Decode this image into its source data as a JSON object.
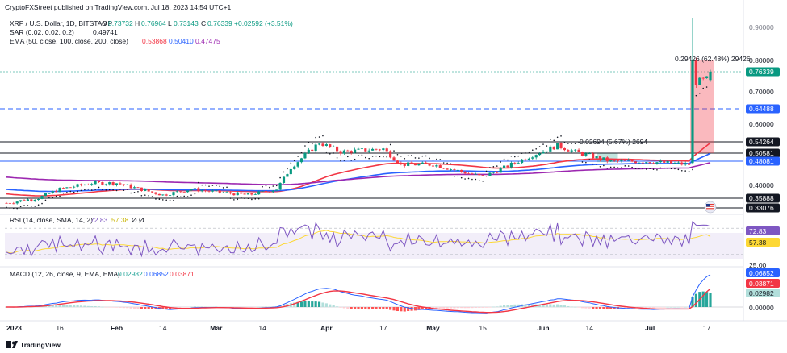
{
  "header": {
    "published_by": "CryptoFXStreet published on TradingView.com, Jul 18, 2023 14:54 UTC+1",
    "symbol_line": "XRP / U.S. Dollar, 1D, BITSTAMP",
    "ohlc": [
      {
        "key": "O",
        "value": "0.73732"
      },
      {
        "key": "H",
        "value": "0.76964"
      },
      {
        "key": "L",
        "value": "0.73143"
      },
      {
        "key": "C",
        "value": "0.76339"
      }
    ],
    "change": "+0.02592 (+3.51%)",
    "sar_line": {
      "label": "SAR (0.02, 0.02, 0.2)",
      "value": "0.49741"
    },
    "ema_line": {
      "label": "EMA (50, close, 100, close, 200, close)",
      "values": [
        "0.53868",
        "0.50410",
        "0.47475"
      ]
    }
  },
  "rsi": {
    "label": "RSI (14, close, SMA, 14, 2)",
    "values": [
      "72.83",
      "57.38",
      "Ø",
      "Ø"
    ],
    "axis_labels": {
      "upper": "72.83",
      "lower": "57.38",
      "bottom": "25.00"
    },
    "band": [
      30,
      70
    ]
  },
  "macd": {
    "label": "MACD (12, 26, close, 9, EMA, EMA)",
    "values": [
      "0.02982",
      "0.06852",
      "0.03871"
    ],
    "axis_labels": {
      "macd": "0.06852",
      "signal": "0.03871",
      "hist": "0.02982",
      "zero": "0.00000"
    }
  },
  "price_axis": {
    "ticks": [
      "0.80000",
      "0.70000",
      "0.60000",
      "0.40000"
    ],
    "clipped_top": "0.90000"
  },
  "levels": [
    {
      "label": "0.76339",
      "color": "#089981"
    },
    {
      "label": "0.64488",
      "color": "#2962ff"
    },
    {
      "label": "0.54264",
      "color": "#131722"
    },
    {
      "label": "0.50581",
      "color": "#131722"
    },
    {
      "label": "0.48081",
      "color": "#2962ff"
    },
    {
      "label": "0.35888",
      "color": "#131722"
    },
    {
      "label": "0.33076",
      "color": "#131722"
    }
  ],
  "annotations": {
    "measure_big": "0.29426 (62.48%) 29426",
    "measure_small": "0.02694 (5.67%) 2694"
  },
  "x_axis": [
    "2023",
    "16",
    "Feb",
    "14",
    "Mar",
    "14",
    "Apr",
    "17",
    "May",
    "15",
    "Jun",
    "14",
    "Jul",
    "17"
  ],
  "footer": {
    "brand": "TradingView"
  },
  "colors": {
    "up": "#089981",
    "down": "#f23645",
    "ema50": "#f23645",
    "ema100": "#2962ff",
    "ema200": "#9c27b0",
    "sar": "#131722",
    "rsi": "#7e57c2",
    "rsi_sma": "#fdd835",
    "macd": "#2962ff",
    "signal": "#f23645"
  },
  "chart_data": {
    "type": "candlestick",
    "title": "XRP / U.S. Dollar, 1D, BITSTAMP",
    "x_range": [
      "2023-01-01",
      "2023-07-18"
    ],
    "ylim": [
      0.31,
      0.92
    ],
    "price_path": [
      [
        "2023-01-01",
        0.345
      ],
      [
        "2023-01-10",
        0.36
      ],
      [
        "2023-01-16",
        0.39
      ],
      [
        "2023-01-25",
        0.41
      ],
      [
        "2023-02-01",
        0.41
      ],
      [
        "2023-02-14",
        0.37
      ],
      [
        "2023-02-22",
        0.39
      ],
      [
        "2023-03-01",
        0.38
      ],
      [
        "2023-03-10",
        0.37
      ],
      [
        "2023-03-18",
        0.39
      ],
      [
        "2023-03-22",
        0.46
      ],
      [
        "2023-03-28",
        0.52
      ],
      [
        "2023-03-30",
        0.54
      ],
      [
        "2023-04-05",
        0.51
      ],
      [
        "2023-04-17",
        0.52
      ],
      [
        "2023-04-22",
        0.47
      ],
      [
        "2023-05-01",
        0.47
      ],
      [
        "2023-05-15",
        0.43
      ],
      [
        "2023-05-29",
        0.5
      ],
      [
        "2023-06-05",
        0.53
      ],
      [
        "2023-06-10",
        0.51
      ],
      [
        "2023-06-20",
        0.48
      ],
      [
        "2023-06-30",
        0.48
      ],
      [
        "2023-07-12",
        0.47
      ],
      [
        "2023-07-13",
        0.8
      ],
      [
        "2023-07-14",
        0.73
      ],
      [
        "2023-07-17",
        0.74
      ],
      [
        "2023-07-18",
        0.76339
      ]
    ],
    "last_ohlc": {
      "open": 0.73732,
      "high": 0.76964,
      "low": 0.73143,
      "close": 0.76339
    },
    "series": [
      {
        "name": "EMA 50",
        "last": 0.53868
      },
      {
        "name": "EMA 100",
        "last": 0.5041
      },
      {
        "name": "EMA 200",
        "last": 0.47475
      },
      {
        "name": "SAR",
        "last": 0.49741
      }
    ],
    "horizontal_levels": [
      0.76339,
      0.64488,
      0.54264,
      0.50581,
      0.48081,
      0.35888,
      0.33076
    ],
    "rsi_last": 72.83,
    "rsi_sma_last": 57.38,
    "macd_last": {
      "macd": 0.06852,
      "signal": 0.03871,
      "histogram": 0.02982
    }
  }
}
